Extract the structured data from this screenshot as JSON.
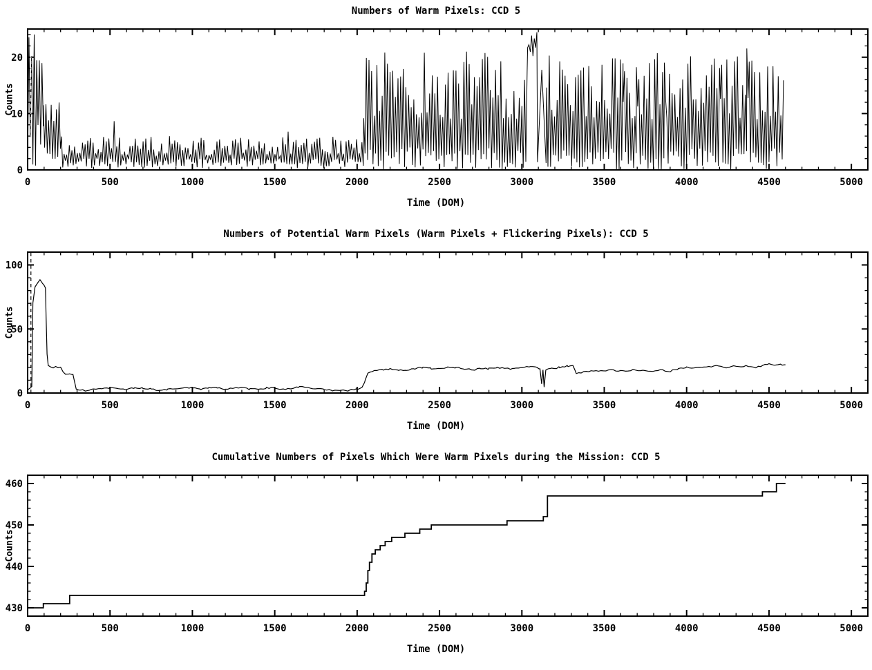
{
  "page": {
    "background": "#ffffff",
    "line_color": "#000000"
  },
  "chart_data": [
    {
      "type": "noisy-columns",
      "title": "Numbers of Warm Pixels: CCD 5",
      "xlabel": "Time (DOM)",
      "ylabel": "Counts",
      "xlim": [
        0,
        5100
      ],
      "ylim": [
        0,
        25
      ],
      "xticks_major": 500,
      "xticks_minor": 100,
      "xtick_labels": [
        0,
        500,
        1000,
        1500,
        2000,
        2500,
        3000,
        3500,
        4000,
        4500,
        5000
      ],
      "yticks": [
        0,
        10,
        20
      ],
      "yticks_minor": 2,
      "vline_dashed_x": 20,
      "grid": false,
      "segments": [
        [
          0,
          55,
          0,
          6,
          20,
          25,
          8
        ],
        [
          55,
          95,
          2,
          8,
          14,
          24,
          8
        ],
        [
          95,
          205,
          1,
          4,
          8,
          12,
          8
        ],
        [
          205,
          2040,
          0.3,
          2,
          2.5,
          6,
          8
        ],
        [
          2040,
          3035,
          0,
          4,
          9,
          21,
          8
        ],
        [
          3035,
          3095,
          20,
          22,
          22,
          24.6,
          8
        ],
        [
          3095,
          3150,
          0,
          3,
          16,
          23,
          26
        ],
        [
          3150,
          3615,
          0,
          4,
          9,
          21,
          8
        ],
        [
          3615,
          3630,
          11,
          13,
          15,
          19,
          8
        ],
        [
          3630,
          3695,
          0,
          4,
          9,
          21,
          8
        ],
        [
          3695,
          3710,
          11,
          13,
          15,
          19,
          8
        ],
        [
          3710,
          3865,
          0,
          4,
          9,
          21,
          8
        ],
        [
          3865,
          3880,
          12,
          14,
          16,
          20,
          8
        ],
        [
          3880,
          4205,
          0,
          4,
          9,
          21,
          8
        ],
        [
          4205,
          4220,
          11,
          13,
          15,
          19,
          8
        ],
        [
          4220,
          4365,
          0,
          4,
          9,
          21,
          8
        ],
        [
          4365,
          4380,
          11,
          13,
          15,
          19,
          8
        ],
        [
          4380,
          4590,
          0,
          4,
          9,
          21,
          8
        ]
      ]
    },
    {
      "type": "line",
      "title": "Numbers of Potential Warm Pixels (Warm Pixels + Flickering Pixels): CCD 5",
      "xlabel": "Time (DOM)",
      "ylabel": "Counts",
      "xlim": [
        0,
        5100
      ],
      "ylim": [
        0,
        110
      ],
      "xticks_major": 500,
      "xticks_minor": 100,
      "xtick_labels": [
        0,
        500,
        1000,
        1500,
        2000,
        2500,
        3000,
        3500,
        4000,
        4500,
        5000
      ],
      "yticks": [
        0,
        50,
        100
      ],
      "yticks_minor": 10,
      "vline_dashed_x": 20,
      "grid": false,
      "noise_amp": 0.6,
      "noise_dx": 15,
      "points": [
        [
          0,
          2
        ],
        [
          15,
          4
        ],
        [
          25,
          5
        ],
        [
          32,
          70
        ],
        [
          45,
          83
        ],
        [
          60,
          86
        ],
        [
          75,
          88
        ],
        [
          90,
          86
        ],
        [
          100,
          84
        ],
        [
          108,
          82
        ],
        [
          112,
          60
        ],
        [
          118,
          30
        ],
        [
          125,
          22
        ],
        [
          140,
          20
        ],
        [
          155,
          19
        ],
        [
          170,
          21
        ],
        [
          185,
          20
        ],
        [
          200,
          20
        ],
        [
          215,
          16
        ],
        [
          235,
          15
        ],
        [
          255,
          15
        ],
        [
          275,
          14
        ],
        [
          285,
          8
        ],
        [
          295,
          3
        ],
        [
          320,
          2
        ],
        [
          360,
          2
        ],
        [
          400,
          3
        ],
        [
          450,
          3
        ],
        [
          500,
          4
        ],
        [
          550,
          3
        ],
        [
          600,
          3
        ],
        [
          650,
          4
        ],
        [
          700,
          4
        ],
        [
          750,
          3
        ],
        [
          800,
          2
        ],
        [
          850,
          3
        ],
        [
          900,
          3
        ],
        [
          950,
          4
        ],
        [
          1000,
          4
        ],
        [
          1050,
          3
        ],
        [
          1100,
          4
        ],
        [
          1150,
          4
        ],
        [
          1200,
          3
        ],
        [
          1250,
          4
        ],
        [
          1300,
          4
        ],
        [
          1350,
          3
        ],
        [
          1400,
          3
        ],
        [
          1450,
          4
        ],
        [
          1500,
          4
        ],
        [
          1550,
          3
        ],
        [
          1600,
          3
        ],
        [
          1650,
          5
        ],
        [
          1700,
          4
        ],
        [
          1750,
          3
        ],
        [
          1800,
          3
        ],
        [
          1850,
          2
        ],
        [
          1900,
          2
        ],
        [
          1950,
          2
        ],
        [
          2000,
          3
        ],
        [
          2030,
          4
        ],
        [
          2050,
          10
        ],
        [
          2065,
          16
        ],
        [
          2090,
          17
        ],
        [
          2120,
          18
        ],
        [
          2160,
          18
        ],
        [
          2200,
          19
        ],
        [
          2250,
          18
        ],
        [
          2300,
          18
        ],
        [
          2350,
          19
        ],
        [
          2400,
          20
        ],
        [
          2450,
          19
        ],
        [
          2500,
          19
        ],
        [
          2550,
          20
        ],
        [
          2600,
          20
        ],
        [
          2650,
          19
        ],
        [
          2700,
          18
        ],
        [
          2750,
          19
        ],
        [
          2800,
          19
        ],
        [
          2850,
          20
        ],
        [
          2900,
          19
        ],
        [
          2950,
          19
        ],
        [
          3000,
          20
        ],
        [
          3050,
          21
        ],
        [
          3090,
          20
        ],
        [
          3110,
          19
        ],
        [
          3120,
          7
        ],
        [
          3128,
          18
        ],
        [
          3135,
          5
        ],
        [
          3145,
          18
        ],
        [
          3180,
          19
        ],
        [
          3230,
          20
        ],
        [
          3280,
          21
        ],
        [
          3310,
          21
        ],
        [
          3330,
          15
        ],
        [
          3360,
          16
        ],
        [
          3420,
          17
        ],
        [
          3480,
          17
        ],
        [
          3540,
          18
        ],
        [
          3600,
          17
        ],
        [
          3660,
          18
        ],
        [
          3720,
          18
        ],
        [
          3780,
          17
        ],
        [
          3840,
          18
        ],
        [
          3900,
          17
        ],
        [
          3950,
          19
        ],
        [
          4000,
          20
        ],
        [
          4060,
          20
        ],
        [
          4120,
          20
        ],
        [
          4180,
          21
        ],
        [
          4240,
          20
        ],
        [
          4300,
          21
        ],
        [
          4360,
          21
        ],
        [
          4420,
          20
        ],
        [
          4460,
          21
        ],
        [
          4500,
          23
        ],
        [
          4540,
          22
        ],
        [
          4580,
          22
        ],
        [
          4600,
          22
        ]
      ]
    },
    {
      "type": "step",
      "title": "Cumulative Numbers of Pixels Which Were Warm Pixels during the Mission: CCD 5",
      "xlabel": "Time (DOM)",
      "ylabel": "Counts",
      "xlim": [
        0,
        5100
      ],
      "ylim": [
        428,
        462
      ],
      "xticks_major": 500,
      "xticks_minor": 100,
      "xtick_labels": [
        0,
        500,
        1000,
        1500,
        2000,
        2500,
        3000,
        3500,
        4000,
        4500,
        5000
      ],
      "yticks": [
        430,
        440,
        450,
        460
      ],
      "yticks_minor": 2,
      "vline_dashed_x": null,
      "grid": false,
      "points": [
        [
          0,
          430
        ],
        [
          95,
          431
        ],
        [
          255,
          433
        ],
        [
          2045,
          434
        ],
        [
          2055,
          436
        ],
        [
          2065,
          439
        ],
        [
          2075,
          441
        ],
        [
          2090,
          443
        ],
        [
          2110,
          444
        ],
        [
          2140,
          445
        ],
        [
          2170,
          446
        ],
        [
          2210,
          447
        ],
        [
          2290,
          448
        ],
        [
          2380,
          449
        ],
        [
          2450,
          450
        ],
        [
          2910,
          451
        ],
        [
          3130,
          452
        ],
        [
          3155,
          457
        ],
        [
          4460,
          458
        ],
        [
          4545,
          460
        ],
        [
          4600,
          460
        ]
      ]
    }
  ]
}
